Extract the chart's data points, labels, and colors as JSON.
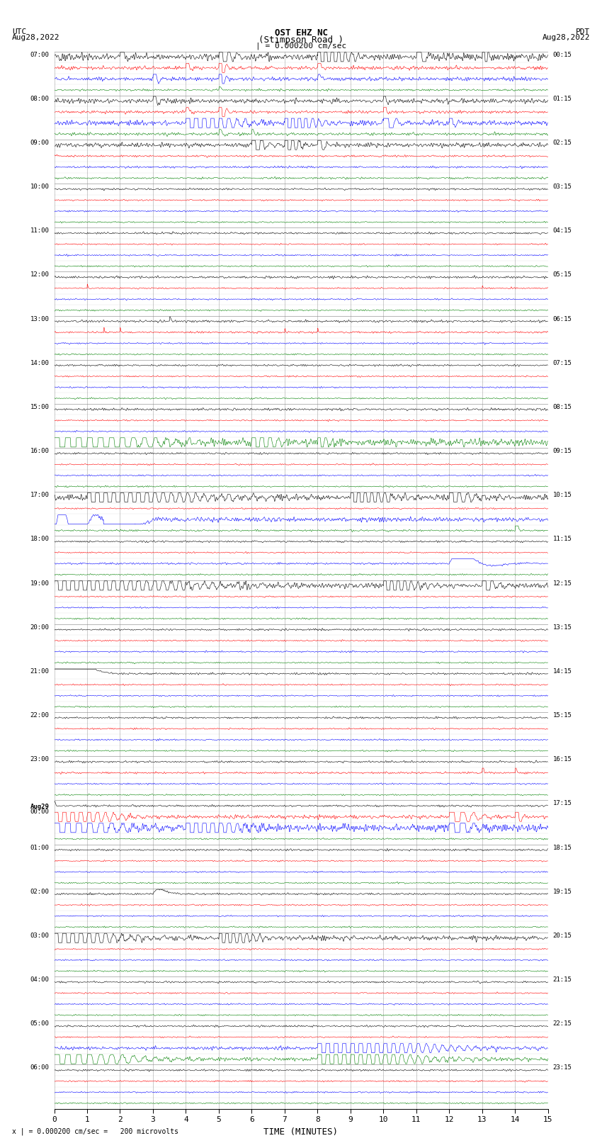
{
  "title_line1": "OST EHZ NC",
  "title_line2": "(Stimpson Road )",
  "title_line3": "| = 0.000200 cm/sec",
  "label_left_top": "UTC",
  "label_left_date": "Aug28,2022",
  "label_right_top": "PDT",
  "label_right_date": "Aug28,2022",
  "xlabel": "TIME (MINUTES)",
  "footer": "x | = 0.000200 cm/sec =   200 microvolts",
  "channel_colors": [
    "black",
    "red",
    "blue",
    "green"
  ],
  "background_color": "#ffffff",
  "grid_color": "#aaaaaa",
  "seed": 12345,
  "utc_labels": [
    "07:00",
    "08:00",
    "09:00",
    "10:00",
    "11:00",
    "12:00",
    "13:00",
    "14:00",
    "15:00",
    "16:00",
    "17:00",
    "18:00",
    "19:00",
    "20:00",
    "21:00",
    "22:00",
    "23:00",
    "Aug29\n00:00",
    "01:00",
    "02:00",
    "03:00",
    "04:00",
    "05:00",
    "06:00"
  ],
  "pdt_labels": [
    "00:15",
    "01:15",
    "02:15",
    "03:15",
    "04:15",
    "05:15",
    "06:15",
    "07:15",
    "08:15",
    "09:15",
    "10:15",
    "11:15",
    "12:15",
    "13:15",
    "14:15",
    "15:15",
    "16:15",
    "17:15",
    "18:15",
    "19:15",
    "20:15",
    "21:15",
    "22:15",
    "23:15"
  ],
  "n_hours": 24,
  "n_channels": 4,
  "minutes": 15
}
